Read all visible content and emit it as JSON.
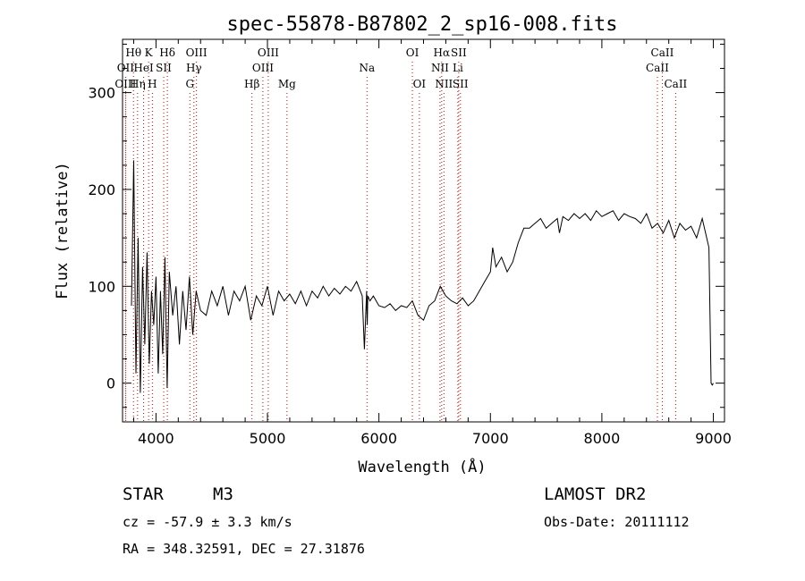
{
  "chart_data": {
    "type": "line",
    "title": "spec-55878-B87802_2_sp16-008.fits",
    "xlabel": "Wavelength (Å)",
    "ylabel": "Flux (relative)",
    "xlim": [
      3700,
      9100
    ],
    "ylim": [
      -40,
      355
    ],
    "xticks": [
      4000,
      5000,
      6000,
      7000,
      8000,
      9000
    ],
    "yticks": [
      0,
      100,
      200,
      300
    ],
    "grid": false,
    "series": [
      {
        "name": "flux",
        "x": [
          3780,
          3800,
          3820,
          3840,
          3860,
          3880,
          3900,
          3920,
          3940,
          3960,
          3980,
          4000,
          4020,
          4040,
          4060,
          4080,
          4100,
          4120,
          4150,
          4180,
          4210,
          4240,
          4270,
          4300,
          4330,
          4360,
          4400,
          4450,
          4500,
          4550,
          4600,
          4650,
          4700,
          4750,
          4800,
          4850,
          4900,
          4950,
          5000,
          5050,
          5100,
          5150,
          5200,
          5250,
          5300,
          5350,
          5400,
          5450,
          5500,
          5550,
          5600,
          5650,
          5700,
          5750,
          5800,
          5850,
          5870,
          5890,
          5895,
          5900,
          5920,
          5950,
          6000,
          6050,
          6100,
          6150,
          6200,
          6250,
          6300,
          6350,
          6400,
          6450,
          6500,
          6550,
          6600,
          6650,
          6700,
          6750,
          6800,
          6850,
          6900,
          6950,
          7000,
          7020,
          7050,
          7100,
          7150,
          7200,
          7250,
          7300,
          7350,
          7400,
          7450,
          7500,
          7550,
          7600,
          7620,
          7650,
          7700,
          7750,
          7800,
          7850,
          7900,
          7950,
          8000,
          8050,
          8100,
          8150,
          8200,
          8250,
          8300,
          8350,
          8400,
          8450,
          8500,
          8550,
          8600,
          8650,
          8700,
          8750,
          8800,
          8850,
          8900,
          8940,
          8960,
          8980,
          8990,
          9000
        ],
        "y": [
          80,
          230,
          10,
          150,
          -10,
          120,
          40,
          135,
          20,
          95,
          60,
          110,
          10,
          95,
          30,
          130,
          -5,
          115,
          70,
          100,
          40,
          95,
          55,
          110,
          50,
          95,
          75,
          70,
          95,
          80,
          100,
          70,
          95,
          85,
          100,
          65,
          90,
          80,
          100,
          70,
          95,
          85,
          92,
          82,
          95,
          80,
          95,
          88,
          100,
          90,
          98,
          92,
          100,
          95,
          105,
          90,
          35,
          95,
          60,
          90,
          85,
          90,
          80,
          78,
          82,
          75,
          80,
          78,
          85,
          70,
          65,
          80,
          85,
          100,
          90,
          85,
          82,
          88,
          80,
          85,
          95,
          105,
          115,
          140,
          120,
          130,
          115,
          125,
          145,
          160,
          160,
          165,
          170,
          160,
          165,
          170,
          155,
          172,
          168,
          175,
          170,
          175,
          168,
          178,
          172,
          175,
          178,
          168,
          175,
          172,
          170,
          165,
          175,
          160,
          165,
          155,
          168,
          150,
          165,
          158,
          162,
          150,
          170,
          150,
          140,
          0,
          -2,
          0
        ]
      }
    ],
    "line_markers": [
      {
        "label": "Hθ",
        "x": 3798,
        "row": 1
      },
      {
        "label": "OII",
        "x": 3727,
        "row": 2
      },
      {
        "label": "OIII",
        "x": 3727,
        "row": 3
      },
      {
        "label": "K",
        "x": 3934,
        "row": 1
      },
      {
        "label": "HeI",
        "x": 3889,
        "row": 2
      },
      {
        "label": "Hη",
        "x": 3835,
        "row": 3
      },
      {
        "label": "SII",
        "x": 4069,
        "row": 2
      },
      {
        "label": "H",
        "x": 3968,
        "row": 3
      },
      {
        "label": "Hδ",
        "x": 4102,
        "row": 1
      },
      {
        "label": "OIII",
        "x": 4363,
        "row": 1
      },
      {
        "label": "Hγ",
        "x": 4340,
        "row": 2
      },
      {
        "label": "G",
        "x": 4304,
        "row": 3
      },
      {
        "label": "Hβ",
        "x": 4861,
        "row": 3
      },
      {
        "label": "OIII",
        "x": 5007,
        "row": 1
      },
      {
        "label": "OIII",
        "x": 4959,
        "row": 2
      },
      {
        "label": "Mg",
        "x": 5175,
        "row": 3
      },
      {
        "label": "Na",
        "x": 5893,
        "row": 2
      },
      {
        "label": "OI",
        "x": 6300,
        "row": 1
      },
      {
        "label": "OI",
        "x": 6363,
        "row": 3
      },
      {
        "label": "Hα",
        "x": 6563,
        "row": 1
      },
      {
        "label": "NII",
        "x": 6548,
        "row": 2
      },
      {
        "label": "NII",
        "x": 6583,
        "row": 3
      },
      {
        "label": "SII",
        "x": 6716,
        "row": 1
      },
      {
        "label": "Li",
        "x": 6708,
        "row": 2
      },
      {
        "label": "SII",
        "x": 6731,
        "row": 3
      },
      {
        "label": "CaII",
        "x": 8542,
        "row": 1
      },
      {
        "label": "CaII",
        "x": 8498,
        "row": 2
      },
      {
        "label": "CaII",
        "x": 8662,
        "row": 3
      }
    ]
  },
  "info": {
    "object_class": "STAR",
    "subclass": "M3",
    "survey": "LAMOST DR2",
    "redshift": "cz = -57.9 ± 3.3 km/s",
    "obs_date": "Obs-Date: 20111112",
    "coords": "RA = 348.32591, DEC =  27.31876"
  }
}
